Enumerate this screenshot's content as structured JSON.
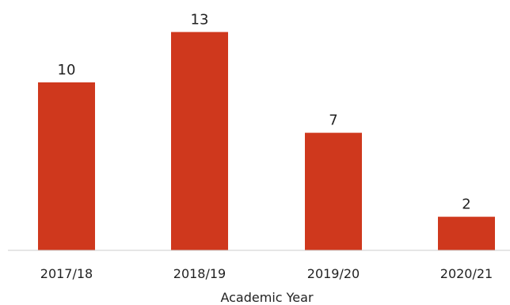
{
  "chart_data": {
    "type": "bar",
    "categories": [
      "2017/18",
      "2018/19",
      "2019/20",
      "2020/21"
    ],
    "values": [
      10,
      13,
      7,
      2
    ],
    "data_labels": [
      "10",
      "13",
      "7",
      "2"
    ],
    "title": "",
    "xlabel": "Academic Year",
    "ylabel": "",
    "ylim": [
      0,
      14
    ],
    "grid": false,
    "legend": "none",
    "bar_color": "#cf381d",
    "axis_color": "#cccccc",
    "text_color": "#222222"
  }
}
